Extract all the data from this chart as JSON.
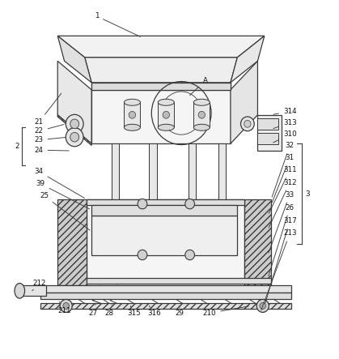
{
  "bg_color": "#ffffff",
  "line_color": "#3a3a3a",
  "line_width": 0.9
}
